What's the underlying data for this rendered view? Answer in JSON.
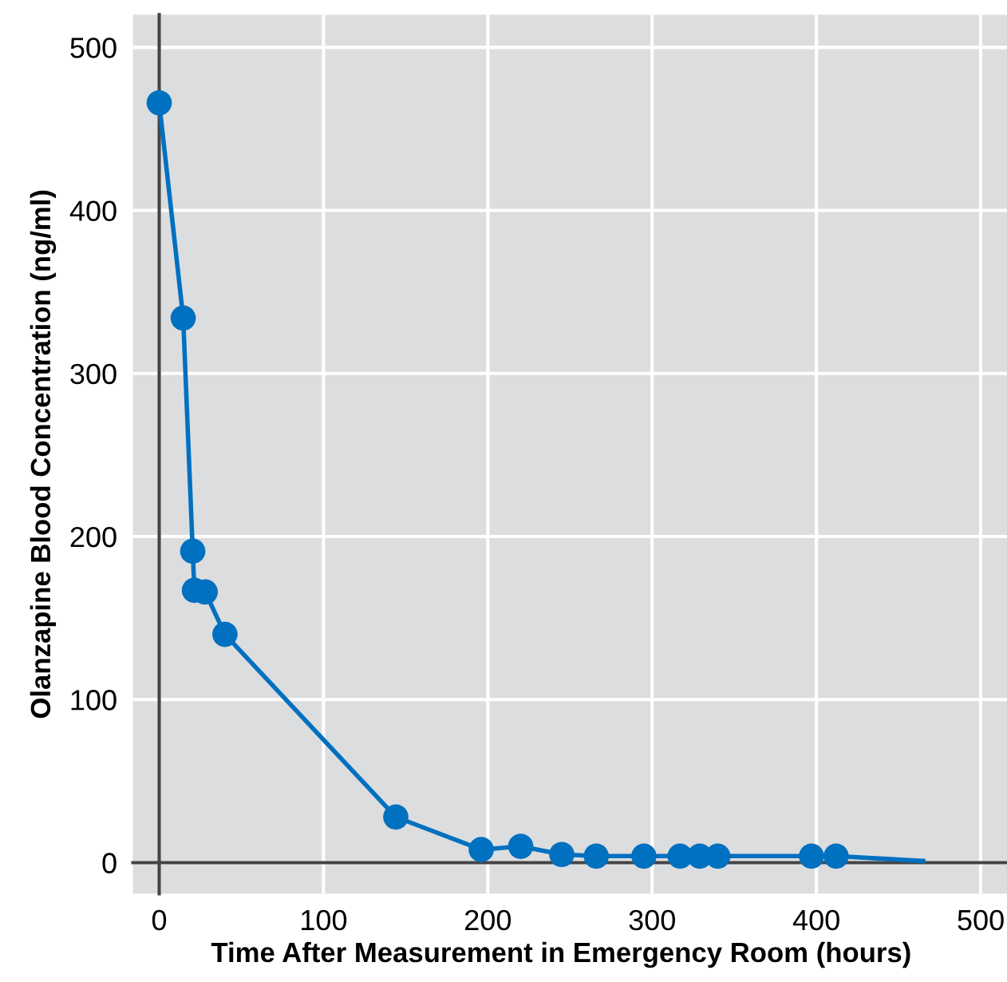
{
  "chart_data": {
    "type": "line",
    "xlabel": "Time After Measurement in Emergency Room (hours)",
    "ylabel": "Olanzapine Blood Concentration (ng/ml)",
    "series": [
      {
        "marker": "none",
        "color": "#0070c0",
        "x": [
          0,
          14.6,
          20.4,
          21.4,
          28,
          40,
          144,
          196,
          220,
          245,
          266,
          295,
          317,
          329,
          340,
          397,
          412,
          465
        ],
        "values": [
          466,
          334,
          191,
          167,
          166,
          140,
          28,
          8,
          10,
          5,
          4,
          4,
          4,
          4,
          4,
          4,
          4,
          1
        ]
      },
      {
        "type": "scatter",
        "marker": "circle",
        "color": "#0070c0",
        "x": [
          0,
          14.6,
          20.4,
          21.4,
          28,
          40,
          144,
          196,
          220,
          245,
          266,
          295,
          317,
          329,
          340,
          397,
          412
        ],
        "values": [
          466,
          334,
          191,
          167,
          166,
          140,
          28,
          8,
          10,
          5,
          4,
          4,
          4,
          4,
          4,
          4,
          4
        ]
      }
    ],
    "xlim": [
      -16,
      516
    ],
    "ylim": [
      -19,
      520
    ],
    "xticks": [
      0,
      100,
      200,
      300,
      400,
      500
    ],
    "yticks": [
      0,
      100,
      200,
      300,
      400,
      500
    ],
    "grid": true
  }
}
